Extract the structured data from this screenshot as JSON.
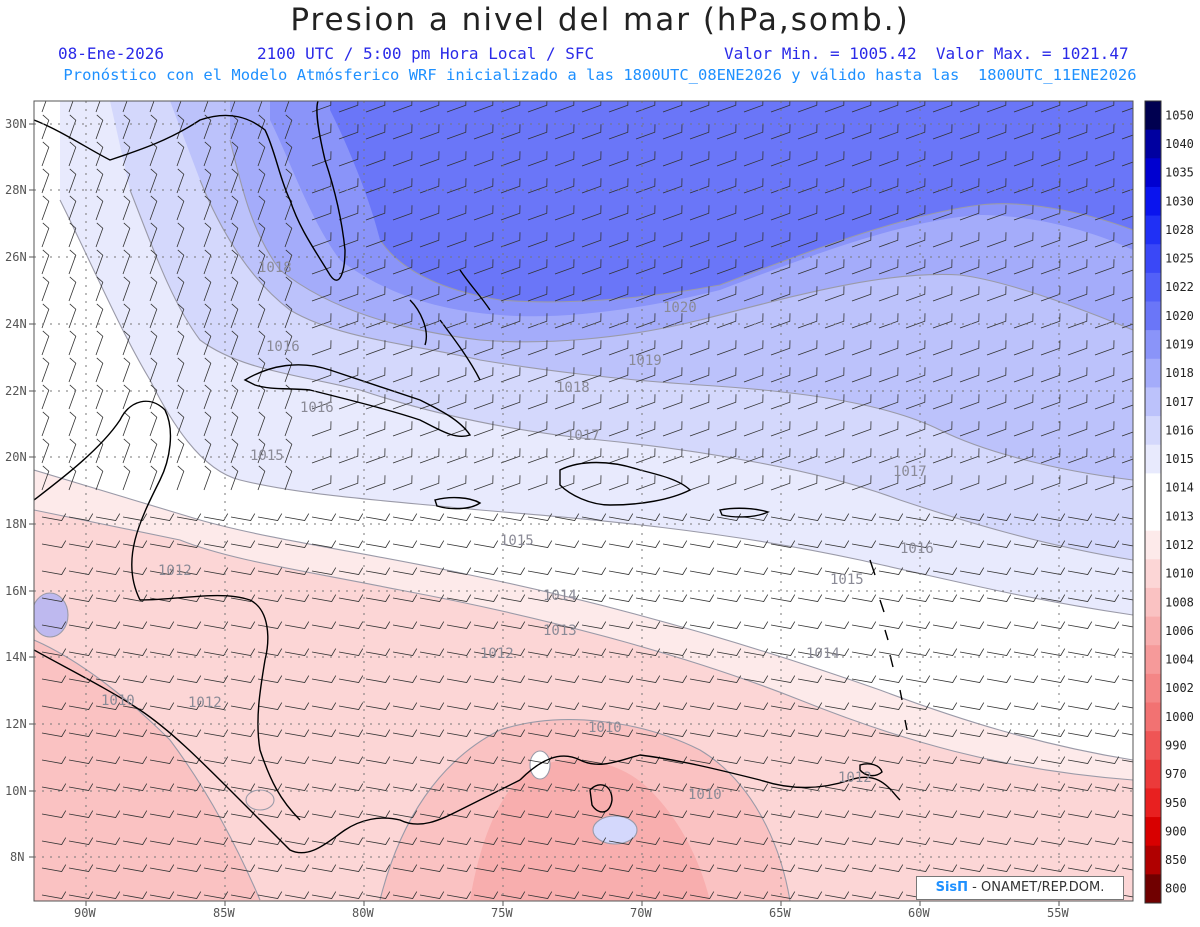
{
  "title": "Presion a nivel del mar (hPa,somb.)",
  "header": {
    "date": "08-Ene-2026",
    "time": "2100 UTC / 5:00 pm Hora Local / SFC",
    "minmax": "Valor Min. = 1005.42  Valor Max. = 1021.47",
    "forecast": "Pronóstico con el Modelo Atmósferico WRF inicializado a las 1800UTC_08ENE2026 y válido hasta las  1800UTC_11ENE2026"
  },
  "map": {
    "lon_ticks": [
      "90W",
      "85W",
      "80W",
      "75W",
      "70W",
      "65W",
      "60W",
      "55W"
    ],
    "lat_ticks": [
      "30N",
      "28N",
      "26N",
      "24N",
      "22N",
      "20N",
      "18N",
      "16N",
      "14N",
      "12N",
      "10N",
      "8N"
    ],
    "contour_labels": [
      "1018",
      "1020",
      "1016",
      "1019",
      "1016",
      "1018",
      "1015",
      "1017",
      "1017",
      "1016",
      "1015",
      "1015",
      "1014",
      "1013",
      "1012",
      "1014",
      "1012",
      "1010",
      "1012",
      "1010",
      "1010",
      "1012"
    ]
  },
  "colorbar": {
    "labels": [
      "1050",
      "1040",
      "1035",
      "1030",
      "1028",
      "1025",
      "1022",
      "1020",
      "1019",
      "1018",
      "1017",
      "1016",
      "1015",
      "1014",
      "1013",
      "1012",
      "1010",
      "1008",
      "1006",
      "1004",
      "1002",
      "1000",
      "990",
      "970",
      "950",
      "900",
      "850",
      "800"
    ],
    "colors": [
      "#000050",
      "#0000a0",
      "#0000d0",
      "#0a14ee",
      "#2030f5",
      "#3a48f7",
      "#5260f8",
      "#6a76f8",
      "#8a94f9",
      "#a4acfa",
      "#bcc2fb",
      "#d4d8fc",
      "#e8eafd",
      "#ffffff",
      "#ffffff",
      "#fdeaea",
      "#fcd6d6",
      "#fac2c2",
      "#f8aeae",
      "#f69a9a",
      "#f48686",
      "#f27272",
      "#ef5555",
      "#ec3a3a",
      "#e82020",
      "#d80000",
      "#b00000",
      "#700000"
    ]
  },
  "credit": {
    "logo": "SisΠ",
    "text": "- ONAMET/REP.DOM."
  }
}
